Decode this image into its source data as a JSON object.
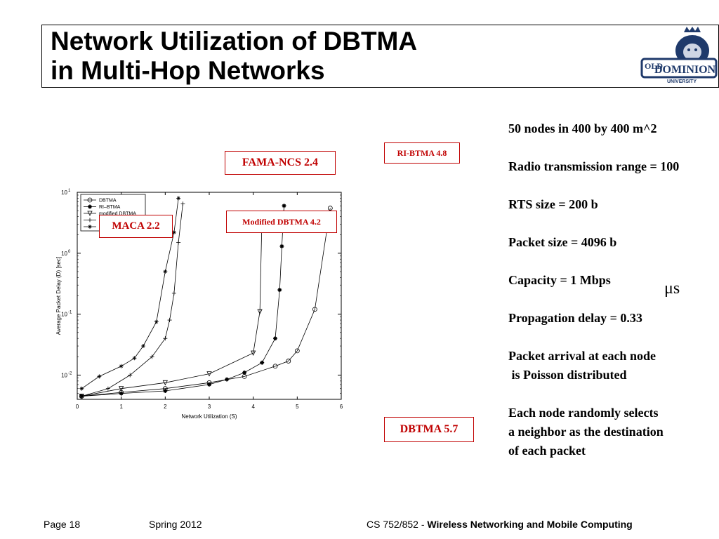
{
  "title": {
    "line1": "Network Utilization of DBTMA",
    "line2": "in Multi-Hop Networks"
  },
  "logo": {
    "name": "old-dominion-logo",
    "text_top": "OLD",
    "text_main": "DOMINION",
    "text_sub": "UNIVERSITY"
  },
  "callouts": {
    "fama": "FAMA-NCS 2.4",
    "ribtma": "RI-BTMA 4.8",
    "modified": "Modified DBTMA 4.2",
    "maca": "MACA  2.2",
    "dbtma": "DBTMA 5.7"
  },
  "specs": {
    "nodes": "50 nodes in 400 by 400 m^2",
    "radio": "Radio transmission range = 100",
    "rts": "RTS size = 200 b",
    "packet": "Packet size = 4096 b",
    "capacity": "Capacity = 1 Mbps",
    "propagation": "Propagation delay = 0.33",
    "mu_symbol": "μs",
    "arrival_1": "Packet arrival at each node",
    "arrival_2": " is Poisson distributed",
    "select_1": "Each node randomly selects",
    "select_2": "a neighbor as the destination",
    "select_3": "of each packet"
  },
  "footer": {
    "page": "Page 18",
    "term": "Spring 2012",
    "course_prefix": "CS 752/852 - ",
    "course_name": "Wireless Networking and Mobile Computing"
  },
  "chart_data": {
    "type": "line",
    "xlabel": "Network Utilization (S)",
    "ylabel": "Average Packet Delay (D) [sec]",
    "xlim": [
      0,
      6
    ],
    "ylim": [
      0.004,
      10
    ],
    "yscale": "log",
    "xticks": [
      "0",
      "1",
      "2",
      "3",
      "4",
      "5",
      "6"
    ],
    "yticks": [
      {
        "value": 10,
        "base": "10",
        "exp": "1"
      },
      {
        "value": 1,
        "base": "10",
        "exp": "0"
      },
      {
        "value": 0.1,
        "base": "10",
        "exp": "-1"
      },
      {
        "value": 0.01,
        "base": "10",
        "exp": "-2"
      }
    ],
    "legend_position": "top-left",
    "series": [
      {
        "name": "DBTMA",
        "marker": "circle",
        "x": [
          0.1,
          1.0,
          2.0,
          3.0,
          3.8,
          4.5,
          4.8,
          5.0,
          5.4,
          5.75
        ],
        "y": [
          0.0045,
          0.0052,
          0.006,
          0.0075,
          0.0095,
          0.014,
          0.017,
          0.025,
          0.12,
          5.5
        ]
      },
      {
        "name": "RI–BTMA",
        "marker": "asterisk",
        "x": [
          0.1,
          1.0,
          2.0,
          3.0,
          3.4,
          3.8,
          4.2,
          4.5,
          4.6,
          4.65,
          4.7
        ],
        "y": [
          0.0045,
          0.005,
          0.0055,
          0.007,
          0.0085,
          0.011,
          0.016,
          0.04,
          0.25,
          1.3,
          6.0
        ]
      },
      {
        "name": "modified DBTMA",
        "marker": "triangle",
        "x": [
          0.1,
          1.0,
          2.0,
          3.0,
          4.0,
          4.15,
          4.2
        ],
        "y": [
          0.0045,
          0.006,
          0.0075,
          0.0105,
          0.023,
          0.11,
          4.5
        ]
      },
      {
        "name": "FAMA–NCS",
        "marker": "plus",
        "x": [
          0.1,
          0.7,
          1.2,
          1.7,
          2.0,
          2.1,
          2.2,
          2.3,
          2.4
        ],
        "y": [
          0.0045,
          0.006,
          0.01,
          0.02,
          0.04,
          0.08,
          0.22,
          1.5,
          6.5
        ]
      },
      {
        "name": "MACA",
        "marker": "star",
        "x": [
          0.1,
          0.5,
          1.0,
          1.3,
          1.5,
          1.8,
          2.0,
          2.2,
          2.3
        ],
        "y": [
          0.006,
          0.0095,
          0.014,
          0.019,
          0.03,
          0.075,
          0.5,
          2.2,
          8.0
        ]
      }
    ]
  }
}
